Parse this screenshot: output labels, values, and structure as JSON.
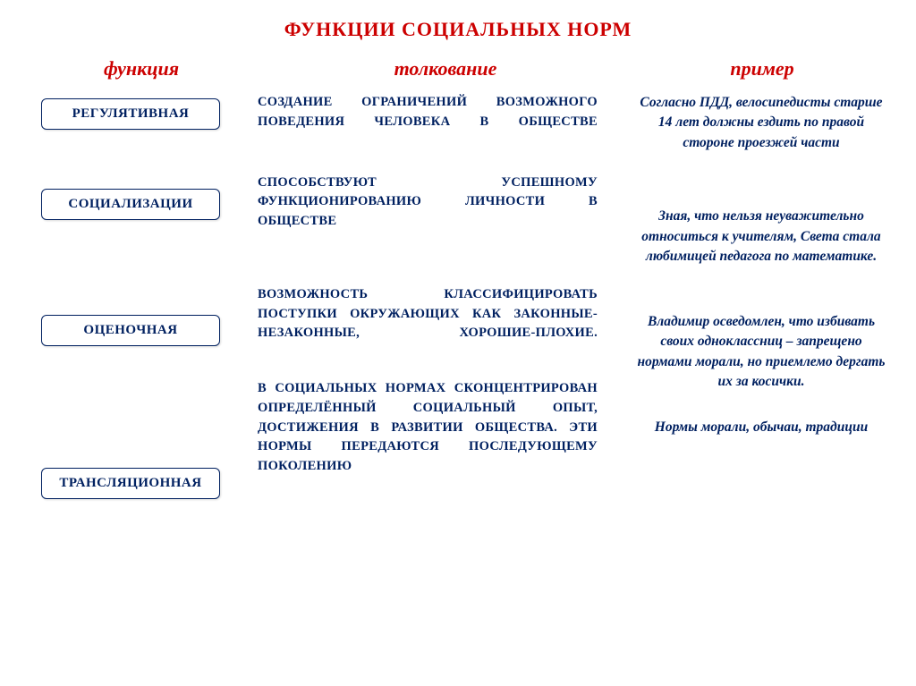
{
  "colors": {
    "red": "#cc0000",
    "navy": "#002060",
    "box_border": "#002060",
    "box_bg": "#ffffff",
    "box_text": "#002060"
  },
  "title": "ФУНКЦИИ СОЦИАЛЬНЫХ  НОРМ",
  "headers": {
    "function": "функция",
    "interpretation": "толкование",
    "example": "пример"
  },
  "rows": [
    {
      "func": "РЕГУЛЯТИВНАЯ",
      "interp": "СОЗДАНИЕ ОГРАНИЧЕНИЙ ВОЗМОЖНОГО ПОВЕДЕНИЯ ЧЕЛОВЕКА В ОБЩЕСТВЕ"
    },
    {
      "func": "СОЦИАЛИЗАЦИИ",
      "interp": "СПОСОБСТВУЮТ УСПЕШНОМУ ФУНКЦИОНИРОВАНИЮ ЛИЧНОСТИ В ОБЩЕСТВЕ"
    },
    {
      "func": "ОЦЕНОЧНАЯ",
      "interp": "ВОЗМОЖНОСТЬ КЛАССИФИЦИРОВАТЬ ПОСТУПКИ ОКРУЖАЮЩИХ КАК ЗАКОННЫЕ-НЕЗАКОННЫЕ, ХОРОШИЕ-ПЛОХИЕ."
    },
    {
      "func": "ТРАНСЛЯЦИОННАЯ",
      "interp": "В СОЦИАЛЬНЫХ НОРМАХ СКОНЦЕНТРИРОВАН ОПРЕДЕЛЁННЫЙ СОЦИАЛЬНЫЙ ОПЫТ, ДОСТИЖЕНИЯ В РАЗВИТИИ ОБЩЕСТВА. ЭТИ НОРМЫ ПЕРЕДАЮТСЯ ПОСЛЕДУЮЩЕМУ ПОКОЛЕНИЮ"
    }
  ],
  "examples": [
    "Согласно ПДД, велосипедисты старше 14 лет должны ездить по правой стороне проезжей части",
    "Зная, что нельзя неуважительно относиться к учителям, Света стала любимицей педагога по математике.",
    "Владимир осведомлен, что избивать своих одноклассниц – запрещено нормами морали, но приемлемо  дергать их за косички.",
    "Нормы морали, обычаи, традиции"
  ],
  "layout": {
    "left_box_top_margins": [
      6,
      66,
      106,
      136
    ],
    "mid_top_margins": [
      0,
      46,
      60,
      40
    ],
    "right_top_margins": [
      0,
      60,
      50,
      28
    ]
  }
}
